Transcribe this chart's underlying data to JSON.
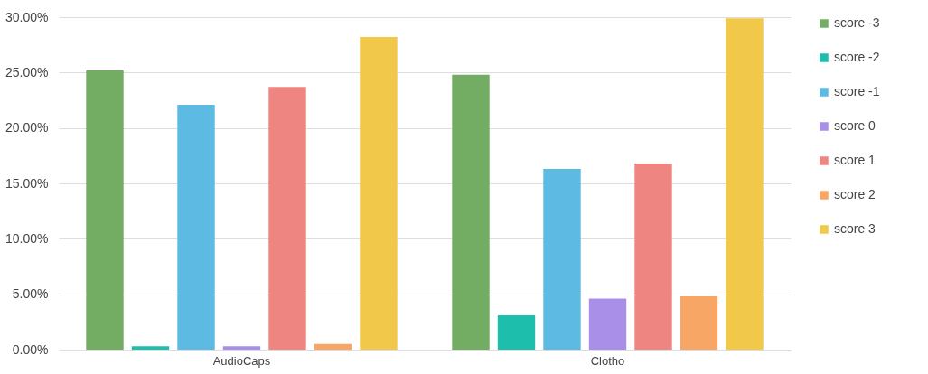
{
  "chart_data": {
    "type": "bar",
    "categories": [
      "AudioCaps",
      "Clotho"
    ],
    "series": [
      {
        "name": "score -3",
        "color": "#72ad63",
        "values": [
          25.2,
          24.8
        ]
      },
      {
        "name": "score -2",
        "color": "#1dbfac",
        "values": [
          0.3,
          3.1
        ]
      },
      {
        "name": "score -1",
        "color": "#5cbae3",
        "values": [
          22.1,
          16.3
        ]
      },
      {
        "name": "score 0",
        "color": "#a98fe8",
        "values": [
          0.3,
          4.6
        ]
      },
      {
        "name": "score 1",
        "color": "#ee8580",
        "values": [
          23.7,
          16.8
        ]
      },
      {
        "name": "score 2",
        "color": "#f7a665",
        "values": [
          0.5,
          4.8
        ]
      },
      {
        "name": "score 3",
        "color": "#f1c84a",
        "values": [
          28.2,
          29.9
        ]
      }
    ],
    "ylim": [
      0,
      30
    ],
    "yticks": [
      {
        "value": 0,
        "label": "0.00%"
      },
      {
        "value": 5,
        "label": "5.00%"
      },
      {
        "value": 10,
        "label": "10.00%"
      },
      {
        "value": 15,
        "label": "15.00%"
      },
      {
        "value": 20,
        "label": "20.00%"
      },
      {
        "value": 25,
        "label": "25.00%"
      },
      {
        "value": 30,
        "label": "30.00%"
      }
    ],
    "grid": "y",
    "legend": "right"
  }
}
